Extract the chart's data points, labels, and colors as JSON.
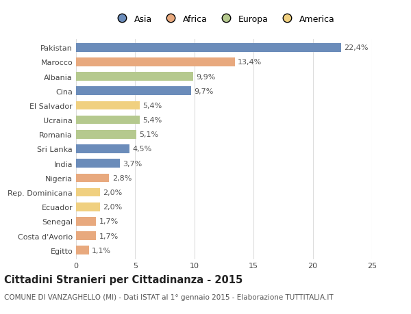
{
  "categories": [
    "Pakistan",
    "Marocco",
    "Albania",
    "Cina",
    "El Salvador",
    "Ucraina",
    "Romania",
    "Sri Lanka",
    "India",
    "Nigeria",
    "Rep. Dominicana",
    "Ecuador",
    "Senegal",
    "Costa d'Avorio",
    "Egitto"
  ],
  "values": [
    22.4,
    13.4,
    9.9,
    9.7,
    5.4,
    5.4,
    5.1,
    4.5,
    3.7,
    2.8,
    2.0,
    2.0,
    1.7,
    1.7,
    1.1
  ],
  "labels": [
    "22,4%",
    "13,4%",
    "9,9%",
    "9,7%",
    "5,4%",
    "5,4%",
    "5,1%",
    "4,5%",
    "3,7%",
    "2,8%",
    "2,0%",
    "2,0%",
    "1,7%",
    "1,7%",
    "1,1%"
  ],
  "continents": [
    "Asia",
    "Africa",
    "Europa",
    "Asia",
    "America",
    "Europa",
    "Europa",
    "Asia",
    "Asia",
    "Africa",
    "America",
    "America",
    "Africa",
    "Africa",
    "Africa"
  ],
  "colors": {
    "Asia": "#6b8cba",
    "Africa": "#e8a97e",
    "Europa": "#b5c98e",
    "America": "#f0d080"
  },
  "legend_order": [
    "Asia",
    "Africa",
    "Europa",
    "America"
  ],
  "title": "Cittadini Stranieri per Cittadinanza - 2015",
  "subtitle": "COMUNE DI VANZAGHELLO (MI) - Dati ISTAT al 1° gennaio 2015 - Elaborazione TUTTITALIA.IT",
  "xlim": [
    0,
    25
  ],
  "xticks": [
    0,
    5,
    10,
    15,
    20,
    25
  ],
  "background_color": "#ffffff",
  "grid_color": "#dddddd",
  "bar_height": 0.6,
  "label_fontsize": 8,
  "tick_fontsize": 8,
  "title_fontsize": 10.5,
  "subtitle_fontsize": 7.5
}
